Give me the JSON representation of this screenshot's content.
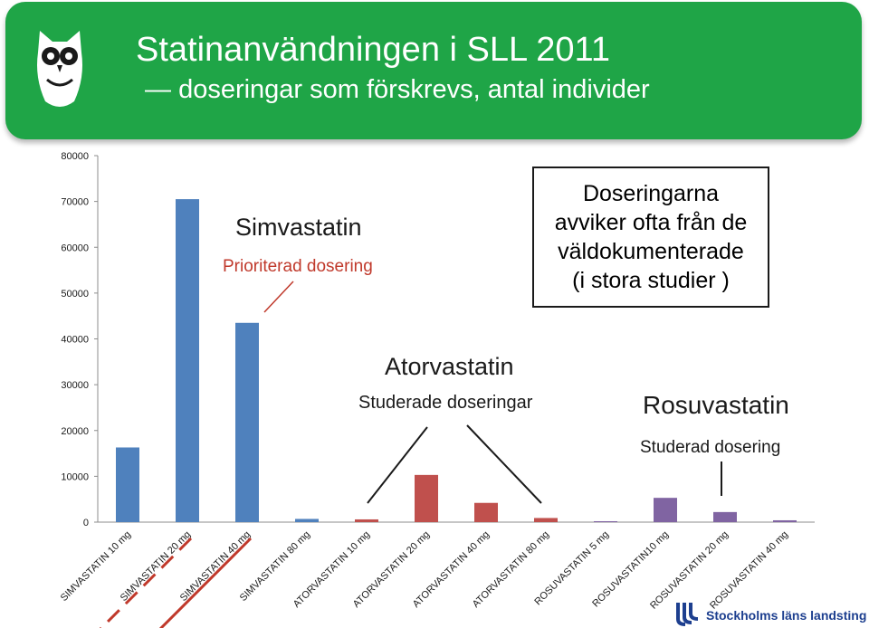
{
  "slide": {
    "title": "Statinanvändningen i SLL 2011",
    "subtitle": "doseringar som förskrevs, antal individer",
    "banner_color": "#1fa547",
    "accent_red": "#c0392b",
    "logo_text": "Stockholms läns landsting",
    "logo_color": "#1d3f8f"
  },
  "annotations": {
    "simva_title": "Simvastatin",
    "simva_sub": "Prioriterad dosering",
    "atorva_title": "Atorvastatin",
    "atorva_sub": "Studerade doseringar",
    "rosuva_title": "Rosuvastatin",
    "rosuva_sub": "Studerad dosering",
    "box_lines": [
      "Doseringarna",
      "avviker ofta från de",
      "väldokumenterade",
      "(i stora studier )"
    ]
  },
  "chart_data": {
    "type": "bar",
    "categories": [
      "SIMVASTATIN 10 mg",
      "SIMVASTATIN 20 mg",
      "SIMVASTATIN 40 mg",
      "SIMVASTATIN 80 mg",
      "ATORVASTATIN 10 mg",
      "ATORVASTATIN 20 mg",
      "ATORVASTATIN 40 mg",
      "ATORVASTATIN 80 mg",
      "ROSUVASTATIN 5 mg",
      "ROSUVASTATIN10 mg",
      "ROSUVASTATIN 20 mg",
      "ROSUVASTATIN 40 mg"
    ],
    "values": [
      16300,
      70500,
      43500,
      700,
      600,
      10300,
      4200,
      900,
      200,
      5300,
      2200,
      400
    ],
    "colors": [
      "#4f81bd",
      "#4f81bd",
      "#4f81bd",
      "#4f81bd",
      "#c0504d",
      "#c0504d",
      "#c0504d",
      "#c0504d",
      "#8064a2",
      "#8064a2",
      "#8064a2",
      "#8064a2"
    ],
    "yticks": [
      0,
      10000,
      20000,
      30000,
      40000,
      50000,
      60000,
      70000,
      80000
    ],
    "ylim": [
      0,
      80000
    ],
    "grid": false,
    "legend": "none",
    "underlined_categories": [
      1,
      2
    ],
    "title": "",
    "xlabel": "",
    "ylabel": ""
  }
}
